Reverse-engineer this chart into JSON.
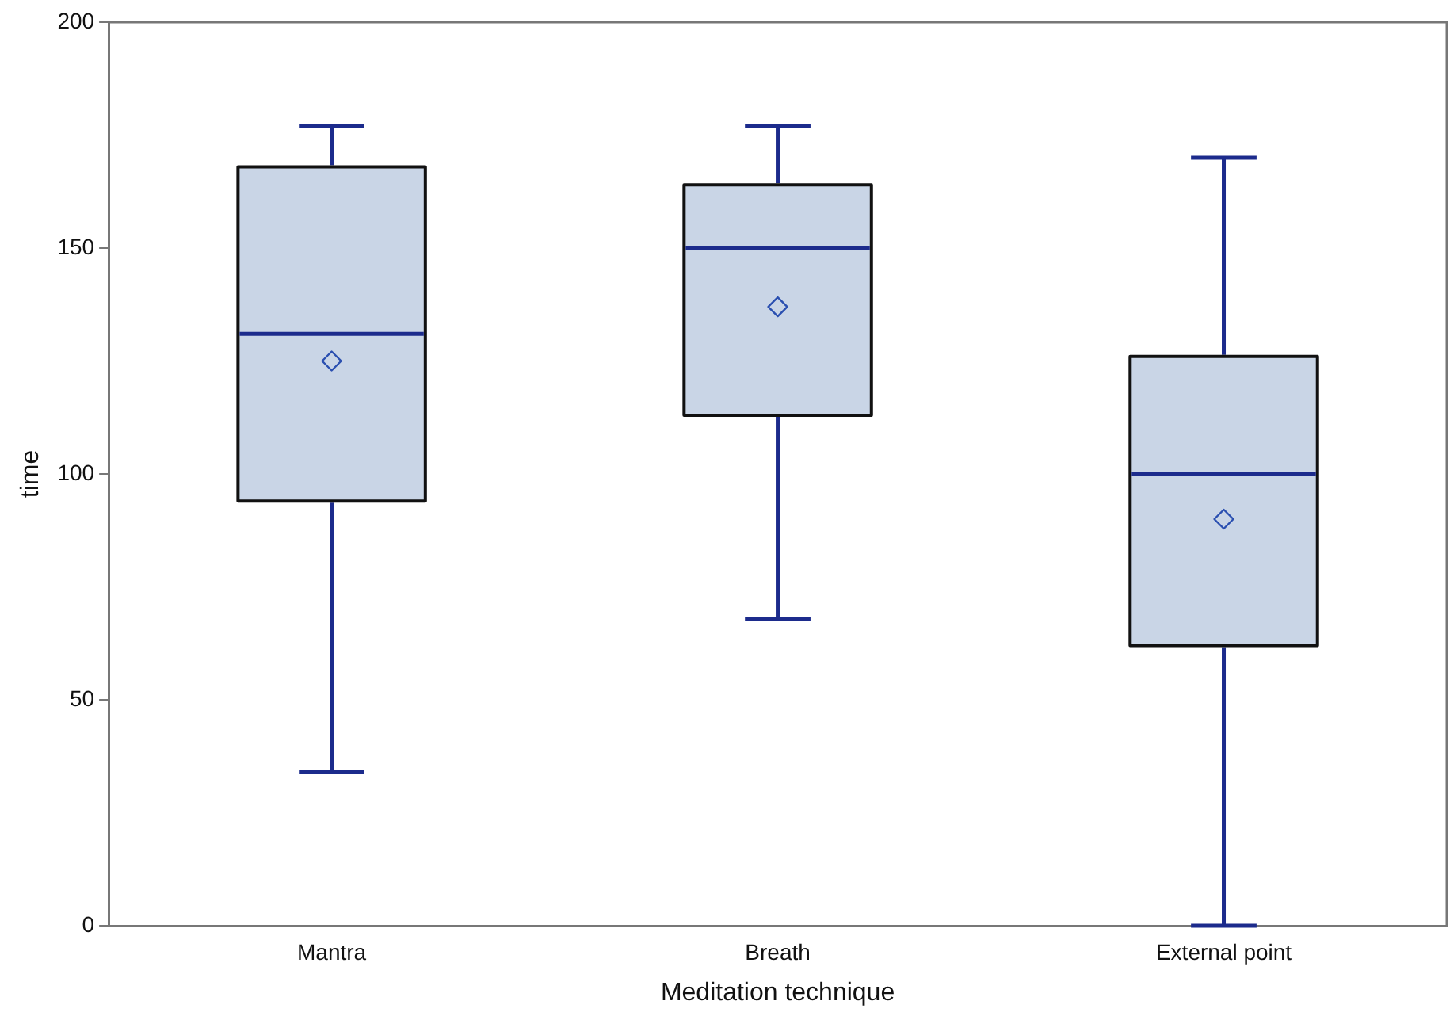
{
  "chart_data": {
    "type": "box",
    "xlabel": "Meditation technique",
    "ylabel": "time",
    "categories": [
      "Mantra",
      "Breath",
      "External point"
    ],
    "boxes": [
      {
        "low": 34,
        "q1": 94,
        "median": 131,
        "q3": 168,
        "high": 177,
        "mean": 125
      },
      {
        "low": 68,
        "q1": 113,
        "median": 150,
        "q3": 164,
        "high": 177,
        "mean": 137
      },
      {
        "low": 0,
        "q1": 62,
        "median": 100,
        "q3": 126,
        "high": 170,
        "mean": 90
      }
    ],
    "color": "#c9d5e6",
    "ylim": [
      0,
      200
    ],
    "yticks": [
      0,
      50,
      100,
      150,
      200
    ],
    "grid": false,
    "legend": false
  }
}
